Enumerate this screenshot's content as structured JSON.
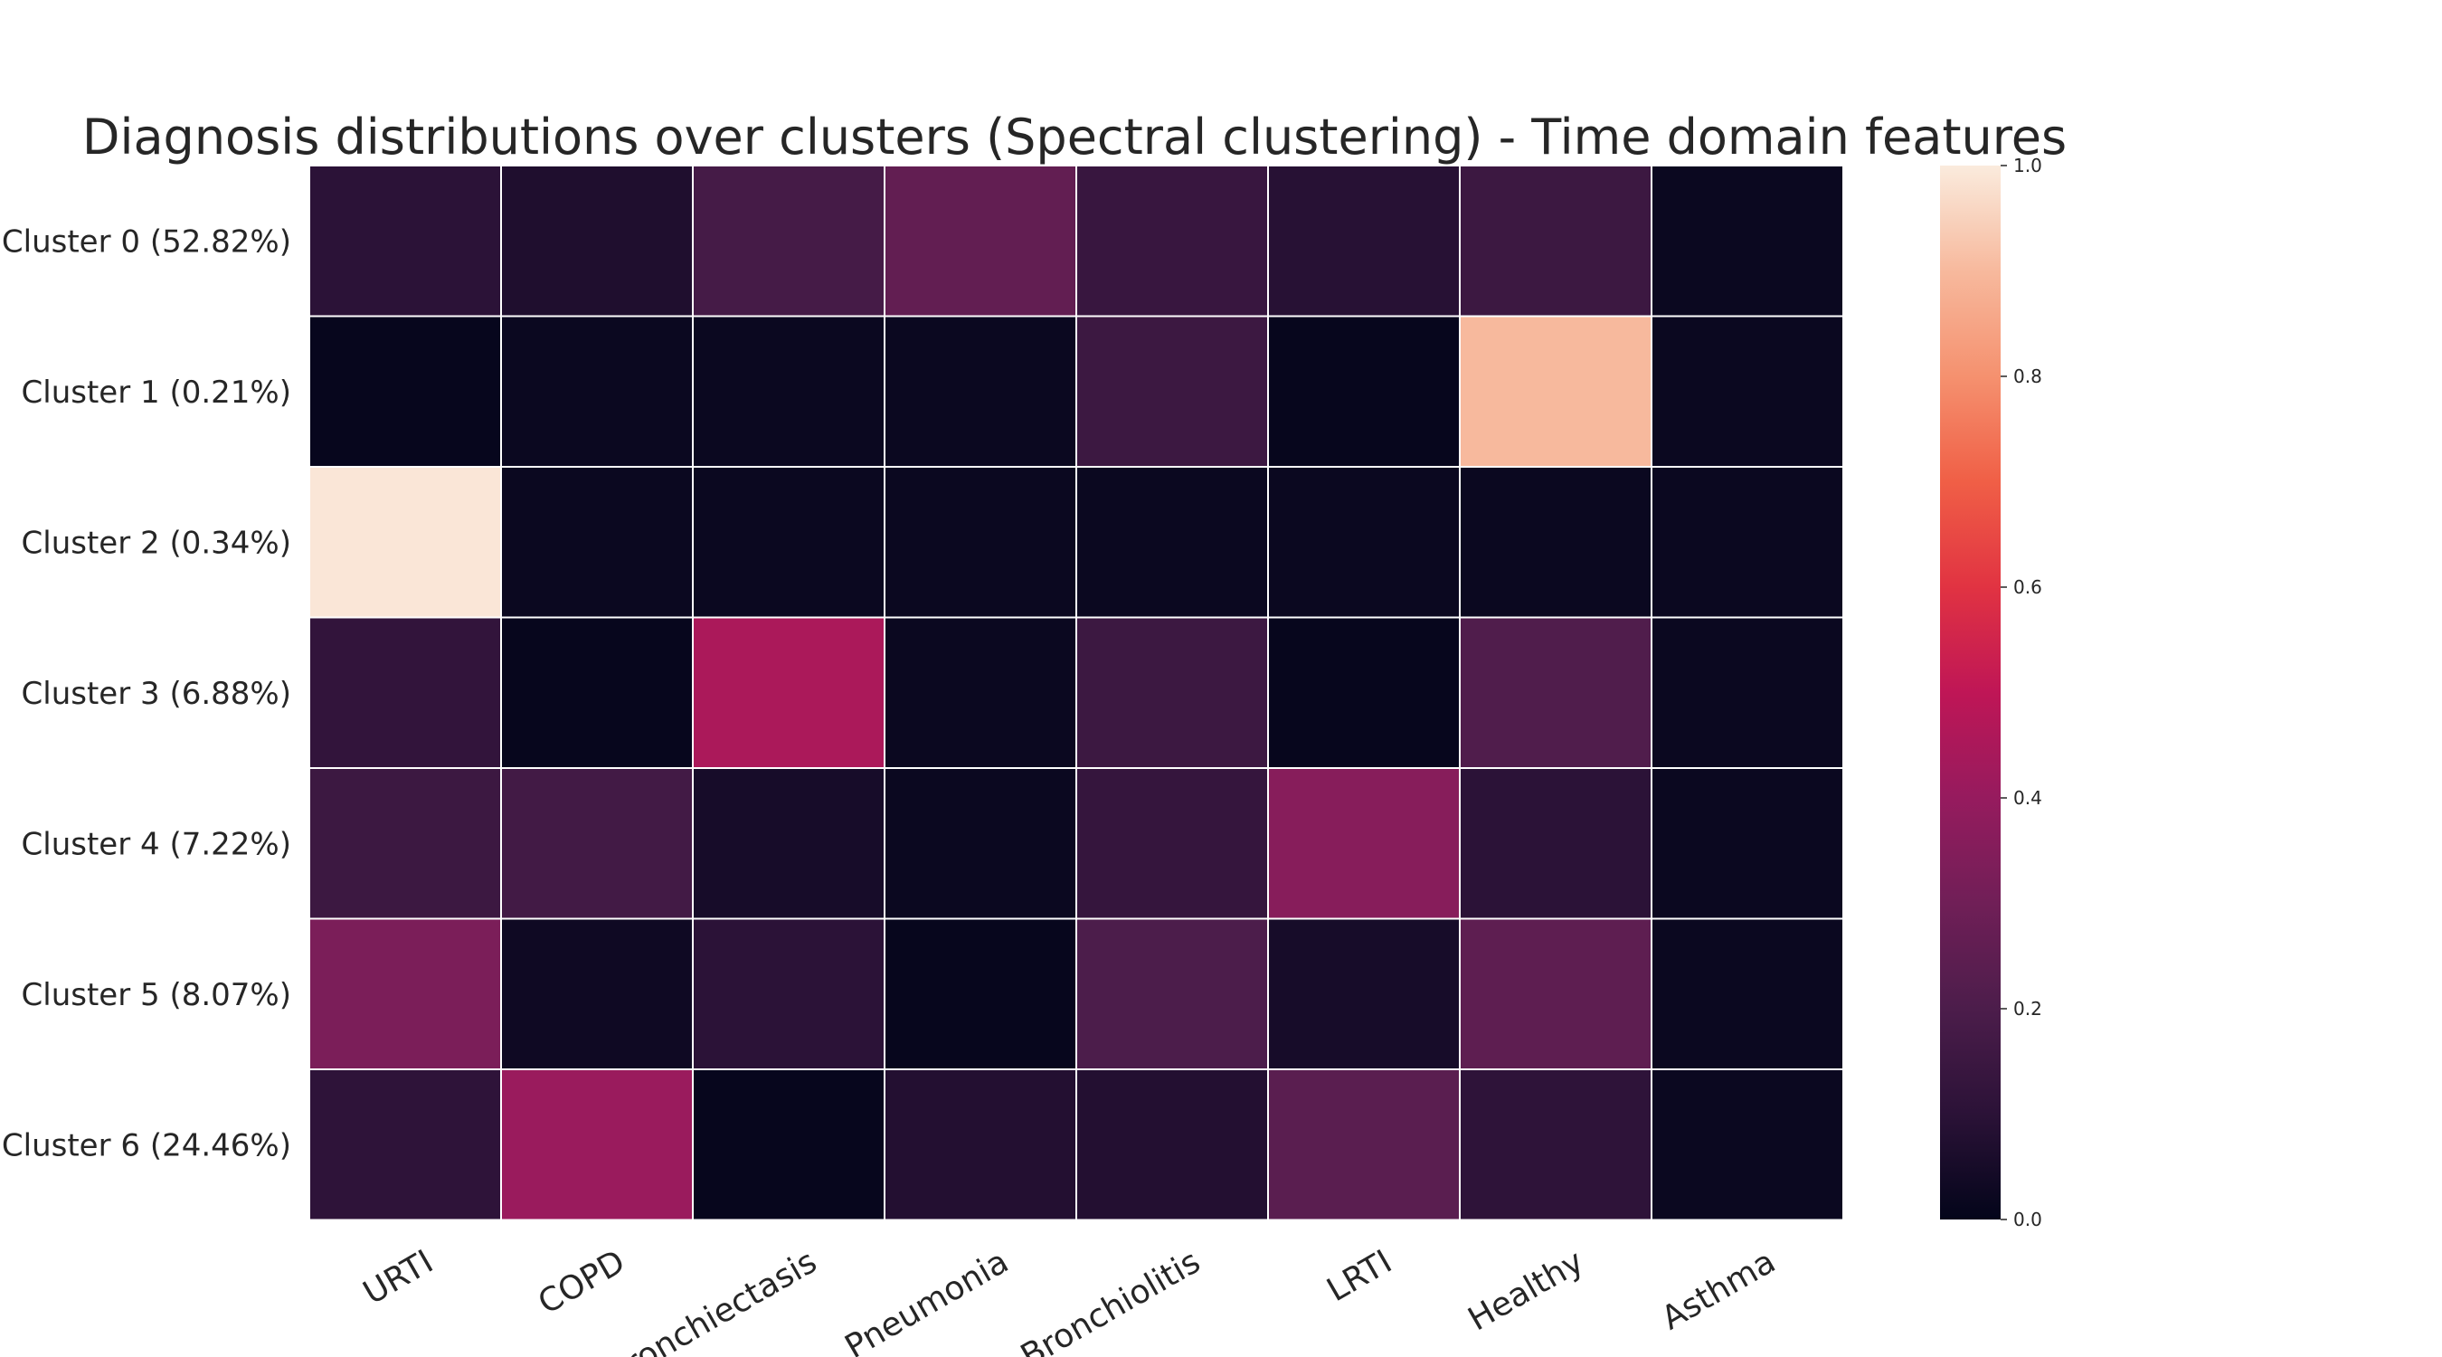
{
  "chart_data": {
    "type": "heatmap",
    "title": "Diagnosis distributions over clusters (Spectral clustering) - Time domain features",
    "xlabel": "",
    "ylabel": "",
    "x_categories": [
      "URTI",
      "COPD",
      "Bronchiectasis",
      "Pneumonia",
      "Bronchiolitis",
      "LRTI",
      "Healthy",
      "Asthma"
    ],
    "y_categories": [
      "Cluster 0 (52.82%)",
      "Cluster 1 (0.21%)",
      "Cluster 2 (0.34%)",
      "Cluster 3 (6.88%)",
      "Cluster 4 (7.22%)",
      "Cluster 5 (8.07%)",
      "Cluster 6 (24.46%)"
    ],
    "values": [
      [
        0.1,
        0.07,
        0.18,
        0.26,
        0.14,
        0.09,
        0.15,
        0.02
      ],
      [
        0.01,
        0.02,
        0.02,
        0.02,
        0.15,
        0.01,
        0.9,
        0.02
      ],
      [
        0.99,
        0.02,
        0.02,
        0.02,
        0.02,
        0.02,
        0.02,
        0.02
      ],
      [
        0.12,
        0.01,
        0.45,
        0.02,
        0.15,
        0.01,
        0.21,
        0.02
      ],
      [
        0.15,
        0.17,
        0.05,
        0.02,
        0.13,
        0.36,
        0.1,
        0.02
      ],
      [
        0.33,
        0.03,
        0.1,
        0.01,
        0.2,
        0.05,
        0.25,
        0.02
      ],
      [
        0.11,
        0.41,
        0.01,
        0.08,
        0.08,
        0.24,
        0.11,
        0.02
      ]
    ],
    "colorbar": {
      "min": 0.0,
      "max": 1.0,
      "ticks": [
        0.0,
        0.2,
        0.4,
        0.6,
        0.8,
        1.0
      ],
      "tick_labels": [
        "0.0",
        "0.2",
        "0.4",
        "0.6",
        "0.8",
        "1.0"
      ],
      "colormap": "rocket",
      "stops": [
        "#03051a",
        "#2b1237",
        "#4c1d4b",
        "#701f57",
        "#961b5e",
        "#bf1656",
        "#e13342",
        "#f05f46",
        "#f5916f",
        "#f7b99d",
        "#faebdd"
      ]
    },
    "grid_line_color": "#ffffff"
  }
}
